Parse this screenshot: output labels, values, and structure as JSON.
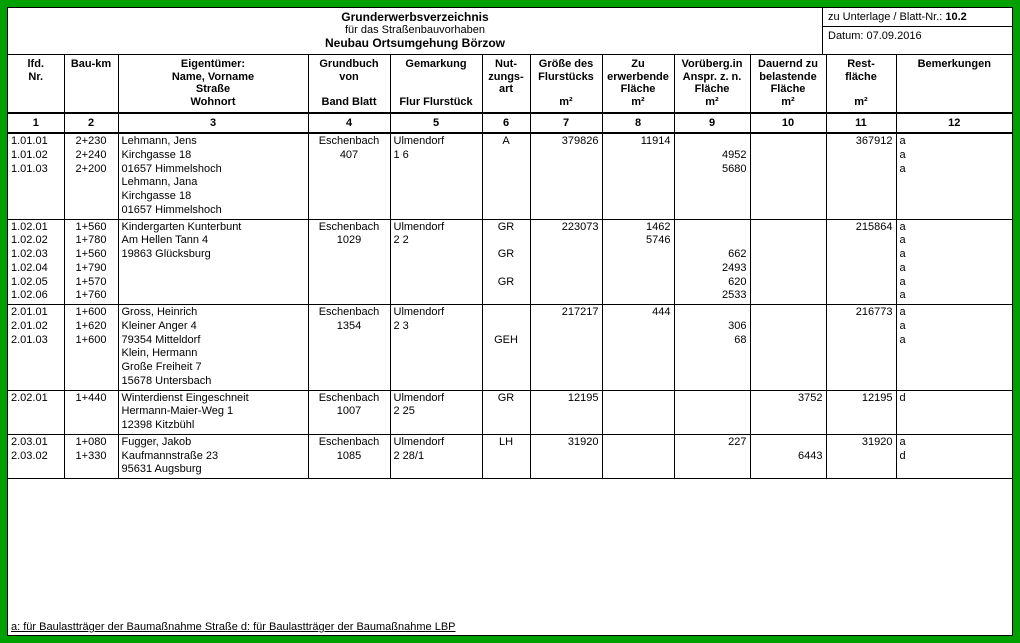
{
  "header": {
    "title1": "Grunderwerbsverzeichnis",
    "title2": "für das Straßenbauvorhaben",
    "title3": "Neubau Ortsumgehung Börzow",
    "meta_unterlage_label": "zu Unterlage / Blatt-Nr.: ",
    "meta_unterlage_value": "10.2",
    "meta_datum": "Datum: 07.09.2016"
  },
  "columns": {
    "h1a": "lfd.",
    "h1b": "Nr.",
    "h2": "Bau-km",
    "h3a": "Eigentümer:",
    "h3b": "Name, Vorname",
    "h3c": "Straße",
    "h3d": "Wohnort",
    "h4a": "Grundbuch",
    "h4b": "von",
    "h4c": "Band     Blatt",
    "h5a": "Gemarkung",
    "h5b": "Flur Flurstück",
    "h6a": "Nut-",
    "h6b": "zungs-",
    "h6c": "art",
    "h7a": "Größe des",
    "h7b": "Flurstücks",
    "h7c": "m²",
    "h8a": "Zu",
    "h8b": "erwerbende",
    "h8c": "Fläche",
    "h8d": "m²",
    "h9a": "Vorüberg.in",
    "h9b": "Anspr. z. n.",
    "h9c": "Fläche",
    "h9d": "m²",
    "h10a": "Dauernd zu",
    "h10b": "belastende",
    "h10c": "Fläche",
    "h10d": "m²",
    "h11a": "Rest-",
    "h11b": "fläche",
    "h11c": "m²",
    "h12": "Bemerkungen",
    "n1": "1",
    "n2": "2",
    "n3": "3",
    "n4": "4",
    "n5": "5",
    "n6": "6",
    "n7": "7",
    "n8": "8",
    "n9": "9",
    "n10": "10",
    "n11": "11",
    "n12": "12"
  },
  "g1": {
    "nr": "1.01.01\n1.01.02\n1.01.03",
    "km": "2+230\n2+240\n2+200",
    "owner": "Lehmann, Jens\nKirchgasse 18\n01657 Himmelshoch\nLehmann, Jana\nKirchgasse 18\n01657 Himmelshoch",
    "gb": "Eschenbach\n407",
    "gem": "Ulmendorf\n1    6",
    "nutz": "A",
    "groesse": "379826",
    "erw": "11914",
    "vor": "\n4952\n5680",
    "dau": "",
    "rest": "367912",
    "bem": "a\na\na"
  },
  "g2": {
    "nr": "1.02.01\n1.02.02\n1.02.03\n1.02.04\n1.02.05\n1.02.06",
    "km": "1+560\n1+780\n1+560\n1+790\n1+570\n1+760",
    "owner": "Kindergarten Kunterbunt\nAm Hellen Tann 4\n19863 Glücksburg",
    "gb": "Eschenbach\n1029",
    "gem": "Ulmendorf\n2    2",
    "nutz": "GR\n\nGR\n\nGR",
    "groesse": "223073",
    "erw": "1462\n5746",
    "vor": "\n\n662\n2493\n620\n2533",
    "dau": "",
    "rest": "215864",
    "bem": "a\na\na\na\na\na"
  },
  "g3": {
    "nr": "2.01.01\n2.01.02\n2.01.03",
    "km": "1+600\n1+620\n1+600",
    "owner": "Gross, Heinrich\nKleiner Anger 4\n79354 Mitteldorf\nKlein, Hermann\nGroße Freiheit 7\n15678 Untersbach",
    "gb": "Eschenbach\n1354",
    "gem": "Ulmendorf\n2    3",
    "nutz": "\n\nGEH",
    "groesse": "217217",
    "erw": "444",
    "vor": "\n306\n68",
    "dau": "",
    "rest": "216773",
    "bem": "a\na\na"
  },
  "g4": {
    "nr": "2.02.01",
    "km": "1+440",
    "owner": "Winterdienst Eingeschneit\nHermann-Maier-Weg 1\n12398 Kitzbühl",
    "gb": "Eschenbach\n1007",
    "gem": "Ulmendorf\n2    25",
    "nutz": "GR",
    "groesse": "12195",
    "erw": "",
    "vor": "",
    "dau": "3752",
    "rest": "12195",
    "bem": "d"
  },
  "g5": {
    "nr": "2.03.01\n2.03.02",
    "km": "1+080\n1+330",
    "owner": "Fugger, Jakob\nKaufmannstraße 23\n95631 Augsburg",
    "gb": "Eschenbach\n1085",
    "gem": "Ulmendorf\n2    28/1",
    "nutz": "LH",
    "groesse": "31920",
    "erw": "",
    "vor": "227",
    "dau": "\n6443",
    "rest": "31920",
    "bem": "a\nd"
  },
  "footer": "a: für Baulastträger der Baumaßnahme Straße   d: für Baulastträger der Baumaßnahme LBP"
}
